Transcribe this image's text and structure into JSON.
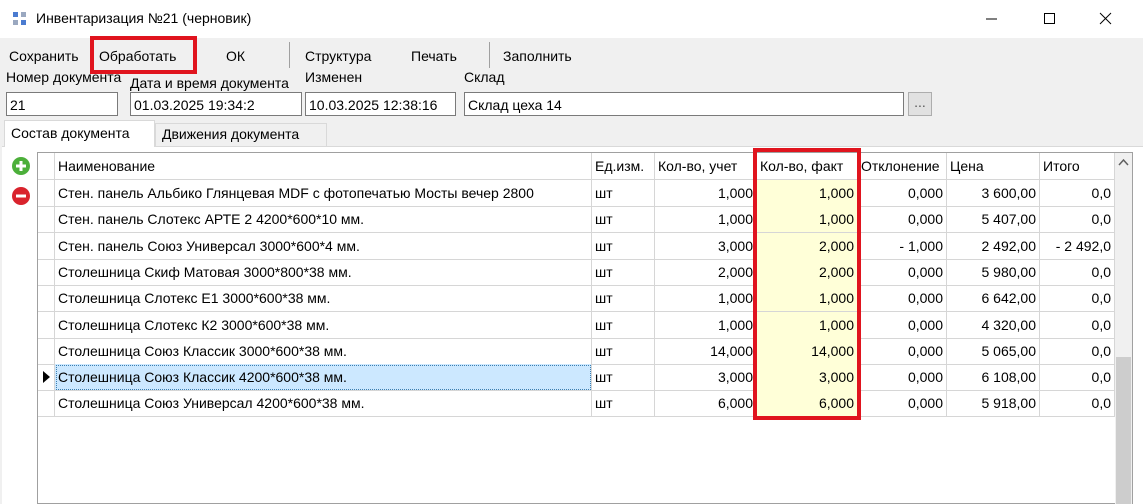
{
  "window": {
    "title": "Инвентаризация №21 (черновик)"
  },
  "toolbar": [
    "Сохранить",
    "Обработать",
    "ОК",
    "Структура",
    "Печать",
    "Заполнить"
  ],
  "fields": [
    {
      "label": "Номер документа",
      "value": "21"
    },
    {
      "label": "Дата и время документа",
      "value": "01.03.2025  19:34:2"
    },
    {
      "label": "Изменен",
      "value": "10.03.2025 12:38:16"
    },
    {
      "label": "Склад",
      "value": "Склад цеха 14",
      "button": "..."
    }
  ],
  "tabs": [
    "Состав документа",
    "Движения документа"
  ],
  "table": {
    "columns": [
      "Наименование",
      "Ед.изм.",
      "Кол-во, учет",
      "Кол-во, факт",
      "Отклонение",
      "Цена",
      "Итого"
    ],
    "rows": [
      [
        "Стен. панель Альбико   Глянцевая MDF с фотопечатью Мосты вечер 2800",
        "шт",
        "1,000",
        "1,000",
        "0,000",
        "3 600,00",
        "0,0"
      ],
      [
        "Стен. панель Слотекс АРТЕ 2 4200*600*10 мм.",
        "шт",
        "1,000",
        "1,000",
        "0,000",
        "5 407,00",
        "0,0"
      ],
      [
        "Стен. панель Союз Универсал 3000*600*4 мм.",
        "шт",
        "3,000",
        "2,000",
        "-  1,000",
        "2 492,00",
        "- 2 492,0"
      ],
      [
        "Столешница Скиф Матовая 3000*800*38 мм.",
        "шт",
        "2,000",
        "2,000",
        "0,000",
        "5 980,00",
        "0,0"
      ],
      [
        "Столешница Слотекс Е1 3000*600*38 мм.",
        "шт",
        "1,000",
        "1,000",
        "0,000",
        "6 642,00",
        "0,0"
      ],
      [
        "Столешница Слотекс К2 3000*600*38 мм.",
        "шт",
        "1,000",
        "1,000",
        "0,000",
        "4 320,00",
        "0,0"
      ],
      [
        "Столешница Союз Классик  3000*600*38 мм.",
        "шт",
        "14,000",
        "14,000",
        "0,000",
        "5 065,00",
        "0,0"
      ],
      [
        "Столешница Союз Классик  4200*600*38 мм.",
        "шт",
        "3,000",
        "3,000",
        "0,000",
        "6 108,00",
        "0,0"
      ],
      [
        "Столешница Союз Универсал  4200*600*38 мм.",
        "шт",
        "6,000",
        "6,000",
        "0,000",
        "5 918,00",
        "0,0"
      ]
    ]
  }
}
